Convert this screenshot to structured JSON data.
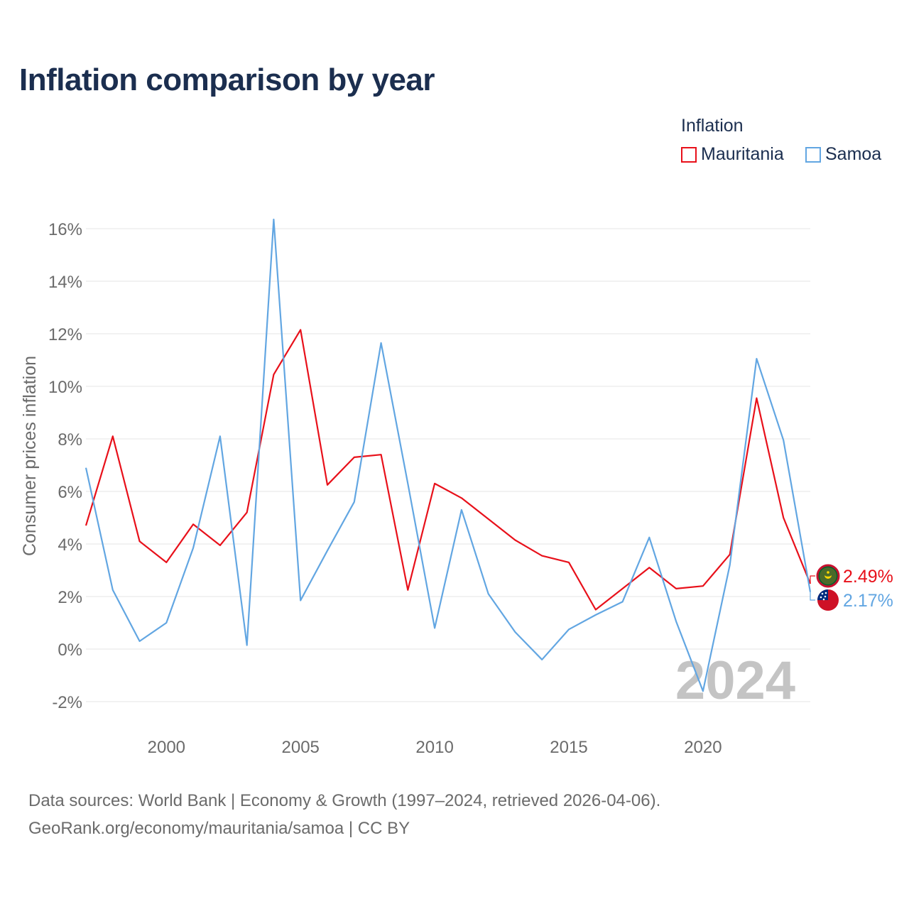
{
  "chart_data": {
    "type": "line",
    "title": "Inflation comparison by year",
    "legend_title": "Inflation",
    "ylabel": "Consumer prices inflation",
    "xlabel": "",
    "xlim": [
      1997,
      2024
    ],
    "ylim": [
      -2,
      16
    ],
    "x_ticks": [
      2000,
      2005,
      2010,
      2015,
      2020
    ],
    "y_ticks": [
      -2,
      0,
      2,
      4,
      6,
      8,
      10,
      12,
      14,
      16
    ],
    "y_tick_labels": [
      "-2%",
      "0%",
      "2%",
      "4%",
      "6%",
      "8%",
      "10%",
      "12%",
      "14%",
      "16%"
    ],
    "watermark_year": "2024",
    "x": [
      1997,
      1998,
      1999,
      2000,
      2001,
      2002,
      2003,
      2004,
      2005,
      2006,
      2007,
      2008,
      2009,
      2010,
      2011,
      2012,
      2013,
      2014,
      2015,
      2016,
      2017,
      2018,
      2019,
      2020,
      2021,
      2022,
      2023,
      2024
    ],
    "series": [
      {
        "name": "Mauritania",
        "color": "#e8101a",
        "end_label": "2.49%",
        "flag_icon": "mauritania-flag-icon",
        "values": [
          4.7,
          8.1,
          4.1,
          3.3,
          4.75,
          3.95,
          5.2,
          10.45,
          12.15,
          6.25,
          7.3,
          7.4,
          2.25,
          6.3,
          5.75,
          4.95,
          4.15,
          3.55,
          3.3,
          1.5,
          2.3,
          3.1,
          2.3,
          2.4,
          3.6,
          9.55,
          5.0,
          2.49
        ]
      },
      {
        "name": "Samoa",
        "color": "#62a6e2",
        "end_label": "2.17%",
        "flag_icon": "samoa-flag-icon",
        "values": [
          6.9,
          2.25,
          0.3,
          1.0,
          3.85,
          8.1,
          0.15,
          16.35,
          1.85,
          3.75,
          5.6,
          11.65,
          6.3,
          0.8,
          5.3,
          2.1,
          0.65,
          -0.4,
          0.75,
          1.3,
          1.8,
          4.25,
          1.05,
          -1.6,
          3.2,
          11.05,
          7.95,
          2.17
        ]
      }
    ]
  },
  "source": {
    "line1": "Data sources: World Bank | Economy & Growth (1997–2024, retrieved 2026-04-06).",
    "line2": "GeoRank.org/economy/mauritania/samoa | CC BY"
  },
  "colors": {
    "title": "#1b2e4f",
    "grid": "#e6e6e6",
    "axis_text": "#6b6b6b",
    "watermark": "#c4c4c4"
  }
}
